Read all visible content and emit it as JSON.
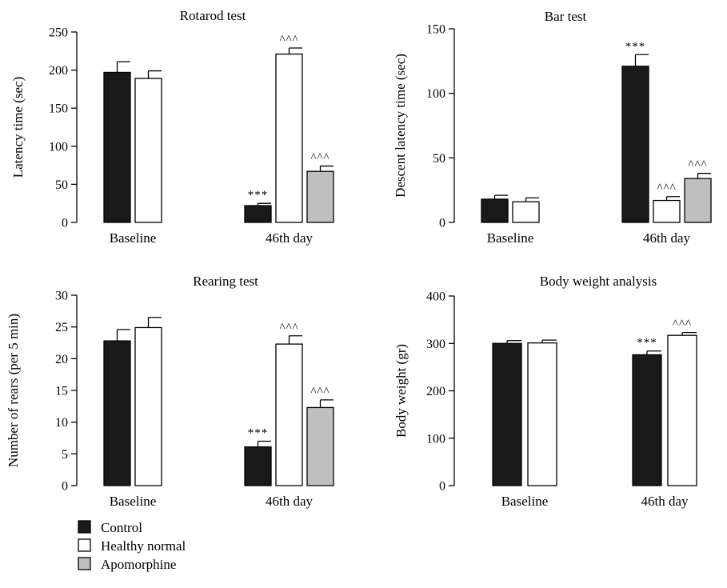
{
  "legend": [
    {
      "name": "Control",
      "color": "#1a1a1a"
    },
    {
      "name": "Healthy normal",
      "color": "#ffffff"
    },
    {
      "name": "Apomorphine",
      "color": "#bfbfbf"
    }
  ],
  "chart_data": [
    {
      "type": "bar",
      "title": "Rotarod test",
      "ylabel": "Latency time (sec)",
      "ylim": [
        0,
        250
      ],
      "yticks": [
        0,
        50,
        100,
        150,
        200,
        250
      ],
      "categories": [
        "Baseline",
        "46th day"
      ],
      "series": [
        {
          "name": "Control",
          "color": "#1a1a1a",
          "values": [
            197,
            22
          ],
          "errors": [
            14,
            3
          ],
          "annotations": [
            "",
            "***"
          ]
        },
        {
          "name": "Healthy normal",
          "color": "#ffffff",
          "values": [
            189,
            221
          ],
          "errors": [
            10,
            8
          ],
          "annotations": [
            "",
            "^^^"
          ]
        },
        {
          "name": "Apomorphine",
          "color": "#bfbfbf",
          "values": [
            null,
            67
          ],
          "errors": [
            null,
            7
          ],
          "annotations": [
            "",
            "^^^"
          ]
        }
      ]
    },
    {
      "type": "bar",
      "title": "Bar test",
      "ylabel": "Descent latency time (sec)",
      "ylim": [
        0,
        150
      ],
      "yticks": [
        0,
        50,
        100,
        150
      ],
      "categories": [
        "Baseline",
        "46th day"
      ],
      "series": [
        {
          "name": "Control",
          "color": "#1a1a1a",
          "values": [
            18,
            121
          ],
          "errors": [
            3,
            9
          ],
          "annotations": [
            "",
            "***"
          ]
        },
        {
          "name": "Healthy normal",
          "color": "#ffffff",
          "values": [
            16,
            17
          ],
          "errors": [
            3,
            3
          ],
          "annotations": [
            "",
            "^^^"
          ]
        },
        {
          "name": "Apomorphine",
          "color": "#bfbfbf",
          "values": [
            null,
            34
          ],
          "errors": [
            null,
            4
          ],
          "annotations": [
            "",
            "^^^"
          ]
        }
      ]
    },
    {
      "type": "bar",
      "title": "Rearing test",
      "ylabel": "Number of rears (per 5 min)",
      "ylim": [
        0,
        30
      ],
      "yticks": [
        0,
        5,
        10,
        15,
        20,
        25,
        30
      ],
      "categories": [
        "Baseline",
        "46th day"
      ],
      "series": [
        {
          "name": "Control",
          "color": "#1a1a1a",
          "values": [
            22.8,
            6.1
          ],
          "errors": [
            1.8,
            0.9
          ],
          "annotations": [
            "",
            "***"
          ]
        },
        {
          "name": "Healthy normal",
          "color": "#ffffff",
          "values": [
            24.9,
            22.3
          ],
          "errors": [
            1.6,
            1.3
          ],
          "annotations": [
            "",
            "^^^"
          ]
        },
        {
          "name": "Apomorphine",
          "color": "#bfbfbf",
          "values": [
            null,
            12.3
          ],
          "errors": [
            null,
            1.2
          ],
          "annotations": [
            "",
            "^^^"
          ]
        }
      ]
    },
    {
      "type": "bar",
      "title": "Body weight analysis",
      "ylabel": "Body weight (gr)",
      "ylim": [
        0,
        400
      ],
      "yticks": [
        0,
        100,
        200,
        300,
        400
      ],
      "categories": [
        "Baseline",
        "46th day"
      ],
      "series": [
        {
          "name": "Control",
          "color": "#1a1a1a",
          "values": [
            300,
            276
          ],
          "errors": [
            6,
            8
          ],
          "annotations": [
            "",
            "***"
          ]
        },
        {
          "name": "Healthy normal",
          "color": "#ffffff",
          "values": [
            301,
            317
          ],
          "errors": [
            6,
            6
          ],
          "annotations": [
            "",
            "^^^"
          ]
        }
      ]
    }
  ]
}
